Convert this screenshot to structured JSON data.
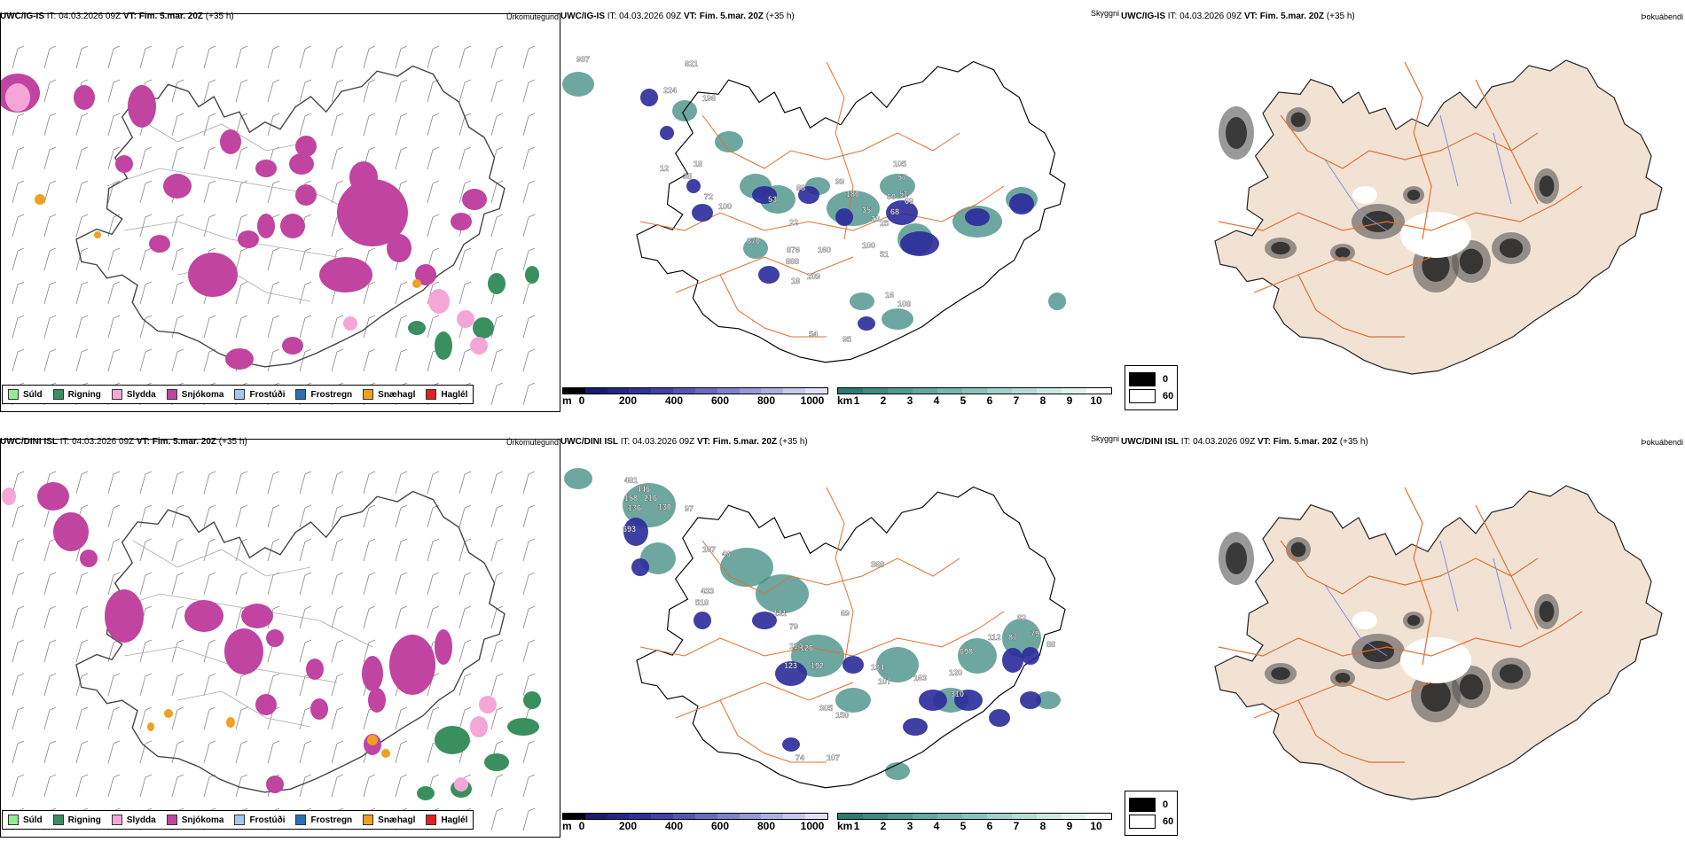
{
  "rows": [
    {
      "model": "UWC/IG-IS",
      "it_label": "IT:",
      "it_value": "04.03.2026 09Z",
      "vt_label": "VT:",
      "vt_value": "Fim. 5.mar. 20Z",
      "lead": "(+35 h)",
      "titles": [
        "Úrkomutegund",
        "Skyggni",
        "Þokuábendi"
      ],
      "cloud_labels": [
        "937",
        "821",
        "224",
        "196",
        "12",
        "18",
        "38",
        "72",
        "100",
        "53",
        "22",
        "88",
        "99",
        "180",
        "35",
        "60",
        "105",
        "57",
        "51",
        "69",
        "68",
        "28",
        "25",
        "870",
        "876",
        "888",
        "160",
        "100",
        "51",
        "209",
        "18",
        "54",
        "95",
        "16",
        "108"
      ]
    },
    {
      "model": "UWC/DINI ISL",
      "it_label": "IT:",
      "it_value": "04.03.2026 09Z",
      "vt_label": "VT:",
      "vt_value": "Fim. 5.mar. 20Z",
      "lead": "(+35 h)",
      "titles": [
        "Úrkomutegund",
        "Skyggni",
        "Þokuábendi"
      ],
      "cloud_labels": [
        "481",
        "446",
        "158",
        "216",
        "136",
        "130",
        "97",
        "693",
        "107",
        "46",
        "368",
        "433",
        "518",
        "131",
        "69",
        "79",
        "114",
        "126",
        "123",
        "192",
        "698",
        "112",
        "87",
        "82",
        "79",
        "88",
        "134",
        "107",
        "163",
        "120",
        "310",
        "305",
        "74",
        "107",
        "150"
      ]
    }
  ],
  "precip_legend": [
    {
      "label": "Súld",
      "color": "#90ee90"
    },
    {
      "label": "Rigning",
      "color": "#3a8f5f"
    },
    {
      "label": "Slydda",
      "color": "#f4a6d7"
    },
    {
      "label": "Snjókoma",
      "color": "#c044a0"
    },
    {
      "label": "Frostúði",
      "color": "#a0c8f0"
    },
    {
      "label": "Frostregn",
      "color": "#2a6fb5"
    },
    {
      "label": "Snæhagl",
      "color": "#f0a020"
    },
    {
      "label": "Haglél",
      "color": "#e02020"
    }
  ],
  "cloud_bar": {
    "unit": "m",
    "ticks": [
      "0",
      "200",
      "400",
      "600",
      "800",
      "1000"
    ],
    "colors": [
      "#000000",
      "#1a1a6e",
      "#252585",
      "#30309a",
      "#4040a8",
      "#5555b5",
      "#6a6ac0",
      "#8080cc",
      "#9898d6",
      "#b0b0e0",
      "#c8c8ea",
      "#e0e0f4"
    ]
  },
  "vis_bar": {
    "unit": "km",
    "ticks": [
      "1",
      "2",
      "3",
      "4",
      "5",
      "6",
      "7",
      "8",
      "9",
      "10"
    ],
    "colors": [
      "#2a7a70",
      "#3c8a80",
      "#4f9a90",
      "#62a8a0",
      "#76b6ae",
      "#8ac4bc",
      "#a0d0c8",
      "#b6dcd6",
      "#cce8e2",
      "#e2f2ee",
      "#ffffff"
    ]
  },
  "fog_legend": [
    {
      "label": "0",
      "color": "#000000"
    },
    {
      "label": "60",
      "color": "#ffffff"
    }
  ],
  "colors": {
    "snow": "#c044a0",
    "rain": "#3a8f5f",
    "sleet": "#f4a6d7",
    "hail": "#f0a020",
    "cloud": "#2a2a9a",
    "visibility": "#3c8a80",
    "land_fill": "#f2e2d4",
    "roads": "#e07030",
    "rivers": "#8090e0"
  }
}
